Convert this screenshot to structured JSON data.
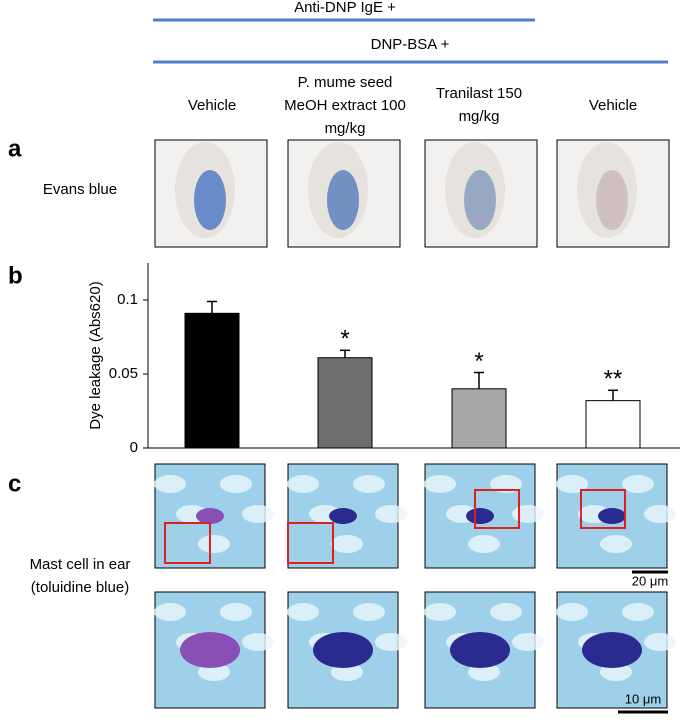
{
  "figure": {
    "treatments": [
      "Anti-DNP IgE +",
      "DNP-BSA +"
    ],
    "panel_labels": [
      "a",
      "b",
      "c"
    ],
    "row_labels": [
      "Evans blue",
      "Mast cell in ear",
      "(toluidine blue)"
    ],
    "scale_bars": [
      "20 μm",
      "10 μm"
    ]
  },
  "chart_data": {
    "type": "bar",
    "categories": [
      "Vehicle",
      "P. mume seed MeOH extract 100 mg/kg",
      "Tranilast 150 mg/kg",
      "Vehicle"
    ],
    "values": [
      0.091,
      0.061,
      0.04,
      0.032
    ],
    "errors": [
      0.008,
      0.005,
      0.011,
      0.007
    ],
    "significance": [
      null,
      "*",
      "*",
      "**"
    ],
    "colors": [
      "#000000",
      "#6e6e6e",
      "#a6a6a6",
      "#ffffff"
    ],
    "y_label": "Dye leakage (Abs620)",
    "ylim": [
      0,
      0.125
    ],
    "yticks": [
      0,
      0.05,
      0.1
    ]
  }
}
